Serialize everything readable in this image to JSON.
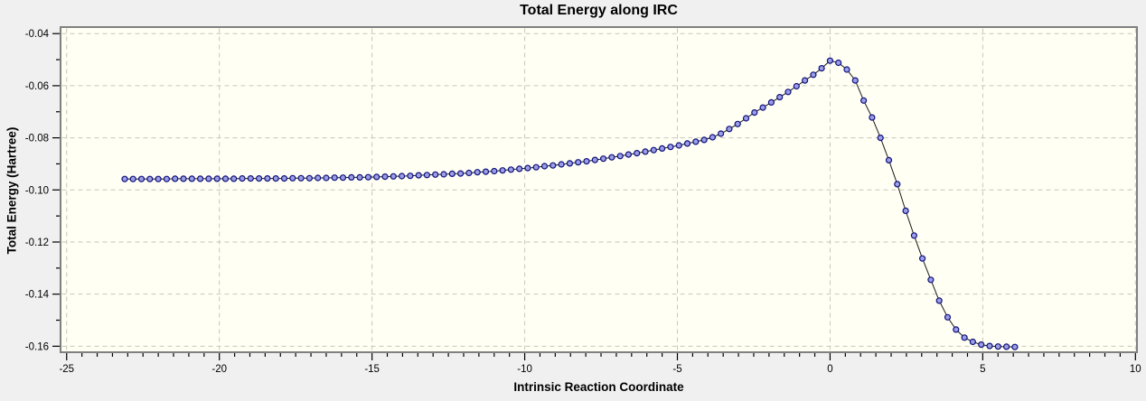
{
  "window": {
    "background_color": "#f0f0f0"
  },
  "chart_data": {
    "type": "line",
    "title": "Total Energy along IRC",
    "xlabel": "Intrinsic Reaction Coordinate",
    "ylabel": "Total Energy (Hartree)",
    "xlim": [
      -25.2,
      10.05
    ],
    "ylim": [
      -0.1623,
      -0.0375
    ],
    "x_major_ticks": [
      -25,
      -20,
      -15,
      -10,
      -5,
      0,
      5,
      10
    ],
    "x_tick_labels": [
      "-25",
      "-20",
      "-15",
      "-10",
      "-5",
      "0",
      "5",
      "10"
    ],
    "x_minor_step": 0.5,
    "y_major_ticks": [
      -0.04,
      -0.06,
      -0.08,
      -0.1,
      -0.12,
      -0.14,
      -0.16
    ],
    "y_tick_labels": [
      "-0.04",
      "-0.06",
      "-0.08",
      "-0.10",
      "-0.12",
      "-0.14",
      "-0.16"
    ],
    "y_minor_step": 0.01,
    "grid": "dashed lines at major ticks",
    "legend": "none",
    "plot_background_color": "#fffff4",
    "frame_color": "#808080",
    "grid_color": "#c6c6ba",
    "line_color": "#1a1a1a",
    "marker_fill_color": "#9a9fe6",
    "marker_stroke_color": "#10107a",
    "series": [
      {
        "name": "Total Energy",
        "points": [
          [
            -23.1,
            -0.0958
          ],
          [
            -22.825,
            -0.0958
          ],
          [
            -22.55,
            -0.0958
          ],
          [
            -22.275,
            -0.0958
          ],
          [
            -22.0,
            -0.0958
          ],
          [
            -21.725,
            -0.0958
          ],
          [
            -21.45,
            -0.0957
          ],
          [
            -21.175,
            -0.0957
          ],
          [
            -20.9,
            -0.0957
          ],
          [
            -20.625,
            -0.0957
          ],
          [
            -20.35,
            -0.0957
          ],
          [
            -20.075,
            -0.0957
          ],
          [
            -19.8,
            -0.0957
          ],
          [
            -19.525,
            -0.0957
          ],
          [
            -19.25,
            -0.0956
          ],
          [
            -18.975,
            -0.0956
          ],
          [
            -18.7,
            -0.0956
          ],
          [
            -18.425,
            -0.0956
          ],
          [
            -18.15,
            -0.0956
          ],
          [
            -17.875,
            -0.0956
          ],
          [
            -17.6,
            -0.0955
          ],
          [
            -17.325,
            -0.0955
          ],
          [
            -17.05,
            -0.0955
          ],
          [
            -16.775,
            -0.0954
          ],
          [
            -16.5,
            -0.0954
          ],
          [
            -16.225,
            -0.0953
          ],
          [
            -15.95,
            -0.0953
          ],
          [
            -15.675,
            -0.0952
          ],
          [
            -15.4,
            -0.0952
          ],
          [
            -15.125,
            -0.0951
          ],
          [
            -14.85,
            -0.095
          ],
          [
            -14.575,
            -0.0949
          ],
          [
            -14.3,
            -0.0948
          ],
          [
            -14.025,
            -0.0947
          ],
          [
            -13.75,
            -0.0946
          ],
          [
            -13.475,
            -0.0944
          ],
          [
            -13.2,
            -0.0943
          ],
          [
            -12.925,
            -0.0941
          ],
          [
            -12.65,
            -0.094
          ],
          [
            -12.375,
            -0.0938
          ],
          [
            -12.1,
            -0.0937
          ],
          [
            -11.825,
            -0.0935
          ],
          [
            -11.55,
            -0.0932
          ],
          [
            -11.275,
            -0.093
          ],
          [
            -11.0,
            -0.0928
          ],
          [
            -10.725,
            -0.0925
          ],
          [
            -10.45,
            -0.0922
          ],
          [
            -10.175,
            -0.0919
          ],
          [
            -9.9,
            -0.0916
          ],
          [
            -9.625,
            -0.0913
          ],
          [
            -9.35,
            -0.0909
          ],
          [
            -9.075,
            -0.0906
          ],
          [
            -8.8,
            -0.0902
          ],
          [
            -8.525,
            -0.0898
          ],
          [
            -8.25,
            -0.0894
          ],
          [
            -7.975,
            -0.089
          ],
          [
            -7.7,
            -0.0885
          ],
          [
            -7.425,
            -0.088
          ],
          [
            -7.15,
            -0.0875
          ],
          [
            -6.875,
            -0.087
          ],
          [
            -6.6,
            -0.0864
          ],
          [
            -6.325,
            -0.0859
          ],
          [
            -6.05,
            -0.0853
          ],
          [
            -5.775,
            -0.0847
          ],
          [
            -5.5,
            -0.0841
          ],
          [
            -5.225,
            -0.0835
          ],
          [
            -4.95,
            -0.0829
          ],
          [
            -4.675,
            -0.0822
          ],
          [
            -4.4,
            -0.0815
          ],
          [
            -4.125,
            -0.0808
          ],
          [
            -3.85,
            -0.0798
          ],
          [
            -3.575,
            -0.0784
          ],
          [
            -3.3,
            -0.0766
          ],
          [
            -3.025,
            -0.0747
          ],
          [
            -2.75,
            -0.0725
          ],
          [
            -2.475,
            -0.0703
          ],
          [
            -2.2,
            -0.0684
          ],
          [
            -1.925,
            -0.0664
          ],
          [
            -1.65,
            -0.0644
          ],
          [
            -1.375,
            -0.0624
          ],
          [
            -1.1,
            -0.0602
          ],
          [
            -0.825,
            -0.058
          ],
          [
            -0.55,
            -0.0558
          ],
          [
            -0.275,
            -0.0533
          ],
          [
            0.0,
            -0.0504
          ],
          [
            0.275,
            -0.0512
          ],
          [
            0.55,
            -0.0538
          ],
          [
            0.825,
            -0.058
          ],
          [
            1.1,
            -0.0657
          ],
          [
            1.375,
            -0.0722
          ],
          [
            1.65,
            -0.08
          ],
          [
            1.925,
            -0.0886
          ],
          [
            2.2,
            -0.0978
          ],
          [
            2.475,
            -0.108
          ],
          [
            2.75,
            -0.1175
          ],
          [
            3.025,
            -0.1263
          ],
          [
            3.3,
            -0.1345
          ],
          [
            3.575,
            -0.1425
          ],
          [
            3.85,
            -0.1489
          ],
          [
            4.125,
            -0.1536
          ],
          [
            4.4,
            -0.1567
          ],
          [
            4.675,
            -0.1583
          ],
          [
            4.95,
            -0.1594
          ],
          [
            5.225,
            -0.1599
          ],
          [
            5.5,
            -0.1601
          ],
          [
            5.775,
            -0.1602
          ],
          [
            6.05,
            -0.1603
          ]
        ]
      }
    ]
  }
}
